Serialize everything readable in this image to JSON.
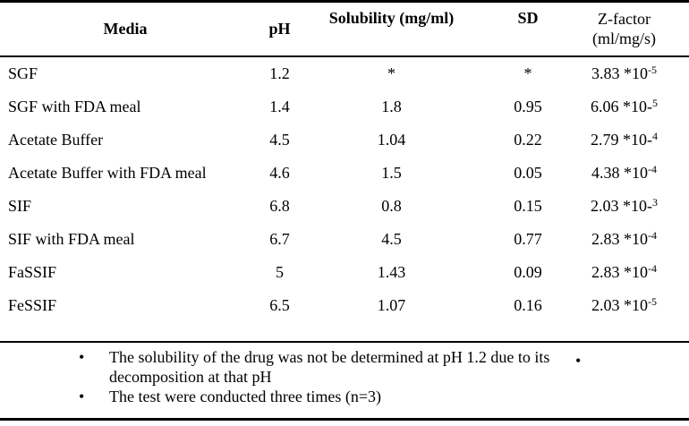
{
  "table": {
    "headers": {
      "media": "Media",
      "ph": "pH",
      "solubility": "Solubility (mg/ml)",
      "sd": "SD",
      "z_line1": "Z-factor",
      "z_line2": "(ml/mg/s)"
    },
    "rows": [
      {
        "media": "SGF",
        "ph": "1.2",
        "sol": "*",
        "sd": "*",
        "z": {
          "prefix": "3.83 *10",
          "base": "",
          "sup": "-5"
        }
      },
      {
        "media": "SGF with FDA meal",
        "ph": "1.4",
        "sol": "1.8",
        "sd": "0.95",
        "z": {
          "prefix": "6.06 *10",
          "base": "-",
          "sup": "5"
        }
      },
      {
        "media": "Acetate Buffer",
        "ph": "4.5",
        "sol": "1.04",
        "sd": "0.22",
        "z": {
          "prefix": "2.79 *10",
          "base": "-",
          "sup": "4"
        }
      },
      {
        "media": "Acetate Buffer with FDA meal",
        "ph": "4.6",
        "sol": "1.5",
        "sd": "0.05",
        "z": {
          "prefix": "4.38 *10",
          "base": "",
          "sup": "-4"
        }
      },
      {
        "media": "SIF",
        "ph": "6.8",
        "sol": "0.8",
        "sd": "0.15",
        "z": {
          "prefix": "2.03 *10",
          "base": "-",
          "sup": "3"
        }
      },
      {
        "media": "SIF with FDA meal",
        "ph": "6.7",
        "sol": "4.5",
        "sd": "0.77",
        "z": {
          "prefix": "2.83 *10",
          "base": "",
          "sup": "-4"
        }
      },
      {
        "media": "FaSSIF",
        "ph": "5",
        "sol": "1.43",
        "sd": "0.09",
        "z": {
          "prefix": "2.83 *10",
          "base": "",
          "sup": "-4"
        }
      },
      {
        "media": "FeSSIF",
        "ph": "6.5",
        "sol": "1.07",
        "sd": "0.16",
        "z": {
          "prefix": "2.03 *10",
          "base": "",
          "sup": "-5"
        }
      }
    ]
  },
  "notes": {
    "bullet": "•",
    "right_bullet": "•",
    "items": [
      {
        "text": "The solubility of the drug was not be determined at pH 1.2 due to its decomposition at that pH"
      },
      {
        "text": "The test were conducted three times (n=3)"
      }
    ]
  },
  "colors": {
    "text": "#000000",
    "border": "#000000",
    "background": "#ffffff"
  }
}
